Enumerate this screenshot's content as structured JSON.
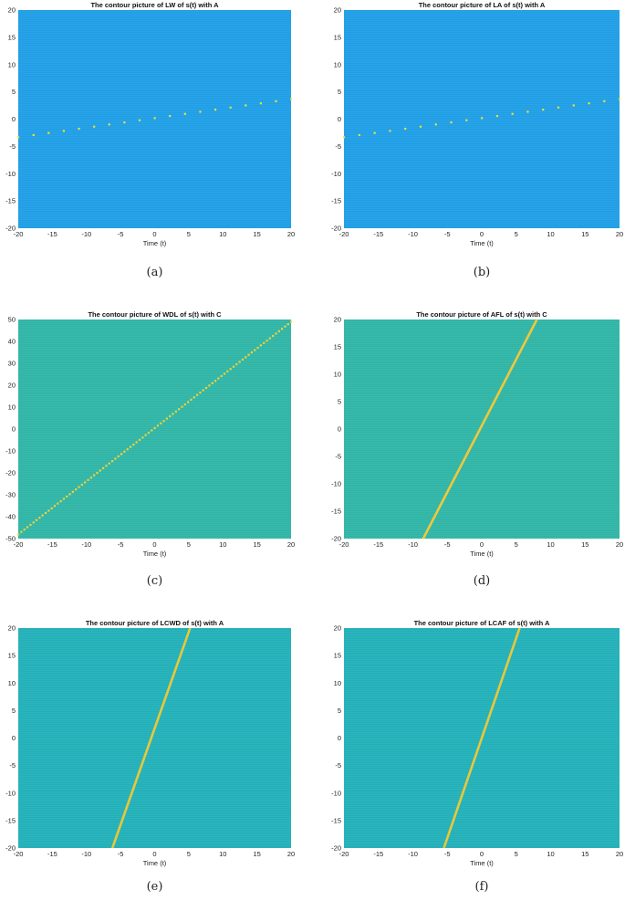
{
  "chart_data": [
    {
      "id": "a",
      "type": "heatmap",
      "title": "The contour picture of LW of s(t) with A",
      "xlabel": "Time (t)",
      "ylabel": "",
      "caption": "(a)",
      "xlim": [
        -20,
        20
      ],
      "ylim": [
        -20,
        20
      ],
      "xticks": [
        -20,
        -15,
        -10,
        -5,
        0,
        5,
        10,
        15,
        20
      ],
      "yticks": [
        -20,
        -15,
        -10,
        -5,
        0,
        5,
        10,
        15,
        20
      ],
      "background_color": "#1f9ee6",
      "line_color": "#e8e23a",
      "line_style": "dotted",
      "line": {
        "x": [
          -20,
          20
        ],
        "y": [
          -3.3,
          3.7
        ]
      }
    },
    {
      "id": "b",
      "type": "heatmap",
      "title": "The contour picture of LA of s(t) with A",
      "xlabel": "Time (t)",
      "ylabel": "",
      "caption": "(b)",
      "xlim": [
        -20,
        20
      ],
      "ylim": [
        -20,
        20
      ],
      "xticks": [
        -20,
        -15,
        -10,
        -5,
        0,
        5,
        10,
        15,
        20
      ],
      "yticks": [
        -20,
        -15,
        -10,
        -5,
        0,
        5,
        10,
        15,
        20
      ],
      "background_color": "#1f9ee6",
      "line_color": "#e8e23a",
      "line_style": "dotted",
      "line": {
        "x": [
          -20,
          20
        ],
        "y": [
          -3.3,
          3.7
        ]
      }
    },
    {
      "id": "c",
      "type": "heatmap",
      "title": "The contour picture of WDL of s(t) with C",
      "xlabel": "Time (t)",
      "ylabel": "",
      "caption": "(c)",
      "xlim": [
        -20,
        20
      ],
      "ylim": [
        -50,
        50
      ],
      "xticks": [
        -20,
        -15,
        -10,
        -5,
        0,
        5,
        10,
        15,
        20
      ],
      "yticks": [
        -50,
        -40,
        -30,
        -20,
        -10,
        0,
        10,
        20,
        30,
        40,
        50
      ],
      "background_color": "#2fb5a6",
      "line_color": "#f0d23a",
      "line_style": "dotted",
      "line": {
        "x": [
          -20,
          20
        ],
        "y": [
          -48,
          49
        ]
      }
    },
    {
      "id": "d",
      "type": "heatmap",
      "title": "The contour picture of AFL of s(t) with C",
      "xlabel": "Time (t)",
      "ylabel": "",
      "caption": "(d)",
      "xlim": [
        -20,
        20
      ],
      "ylim": [
        -20,
        20
      ],
      "xticks": [
        -20,
        -15,
        -10,
        -5,
        0,
        5,
        10,
        15,
        20
      ],
      "yticks": [
        -20,
        -15,
        -10,
        -5,
        0,
        5,
        10,
        15,
        20
      ],
      "background_color": "#2fb5a6",
      "line_color": "#f0c83a",
      "line_style": "solid",
      "line": {
        "x": [
          -8.5,
          8
        ],
        "y": [
          -20,
          20
        ]
      }
    },
    {
      "id": "e",
      "type": "heatmap",
      "title": "The contour picture of LCWD of s(t) with A",
      "xlabel": "Time (t)",
      "ylabel": "",
      "caption": "(e)",
      "xlim": [
        -20,
        20
      ],
      "ylim": [
        -20,
        20
      ],
      "xticks": [
        -20,
        -15,
        -10,
        -5,
        0,
        5,
        10,
        15,
        20
      ],
      "yticks": [
        -20,
        -15,
        -10,
        -5,
        0,
        5,
        10,
        15,
        20
      ],
      "background_color": "#22b0b8",
      "line_color": "#e8c83a",
      "line_style": "solid",
      "line": {
        "x": [
          -6.2,
          5.2
        ],
        "y": [
          -20,
          20
        ]
      }
    },
    {
      "id": "f",
      "type": "heatmap",
      "title": "The contour picture of LCAF of s(t) with A",
      "xlabel": "Time (t)",
      "ylabel": "",
      "caption": "(f)",
      "xlim": [
        -20,
        20
      ],
      "ylim": [
        -20,
        20
      ],
      "xticks": [
        -20,
        -15,
        -10,
        -5,
        0,
        5,
        10,
        15,
        20
      ],
      "yticks": [
        -20,
        -15,
        -10,
        -5,
        0,
        5,
        10,
        15,
        20
      ],
      "background_color": "#22b0b8",
      "line_color": "#e8c83a",
      "line_style": "solid",
      "line": {
        "x": [
          -5.5,
          5.5
        ],
        "y": [
          -20,
          20
        ]
      }
    }
  ]
}
